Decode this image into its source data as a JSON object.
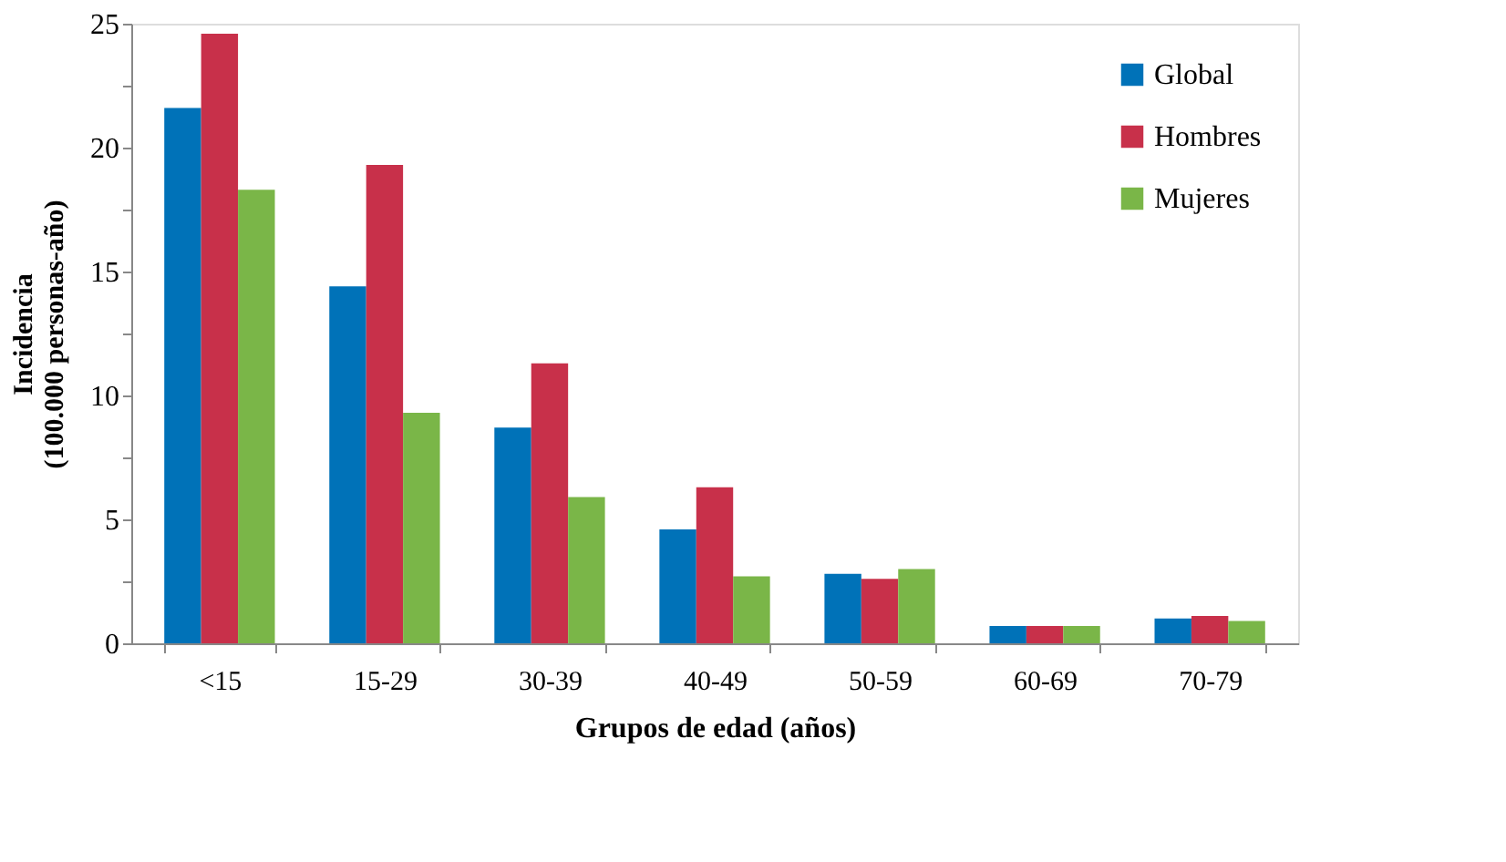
{
  "chart_data": {
    "type": "bar",
    "xlabel": "Grupos de edad (años)",
    "ylabel": "Incidencia\n(100.000 personas-año)",
    "categories": [
      "<15",
      "15-29",
      "30-39",
      "40-49",
      "50-59",
      "60-69",
      "70-79"
    ],
    "series": [
      {
        "name": "Global",
        "color": "#0072b8",
        "values": [
          21.6,
          14.4,
          8.7,
          4.6,
          2.8,
          0.7,
          1.0
        ]
      },
      {
        "name": "Hombres",
        "color": "#c8304a",
        "values": [
          24.6,
          19.3,
          11.3,
          6.3,
          2.6,
          0.7,
          1.1
        ]
      },
      {
        "name": "Mujeres",
        "color": "#7ab648",
        "values": [
          18.3,
          9.3,
          5.9,
          2.7,
          3.0,
          0.7,
          0.9
        ]
      }
    ],
    "ylim": [
      0,
      25
    ],
    "yticks": [
      0,
      {
        "value": 2.5,
        "label": null
      },
      5,
      {
        "value": 7.5,
        "label": null
      },
      10,
      {
        "value": 12.5,
        "label": null
      },
      15,
      {
        "value": 17.5,
        "label": null
      },
      20,
      {
        "value": 22.5,
        "label": null
      },
      25
    ],
    "grid": false,
    "legend": "top right"
  }
}
